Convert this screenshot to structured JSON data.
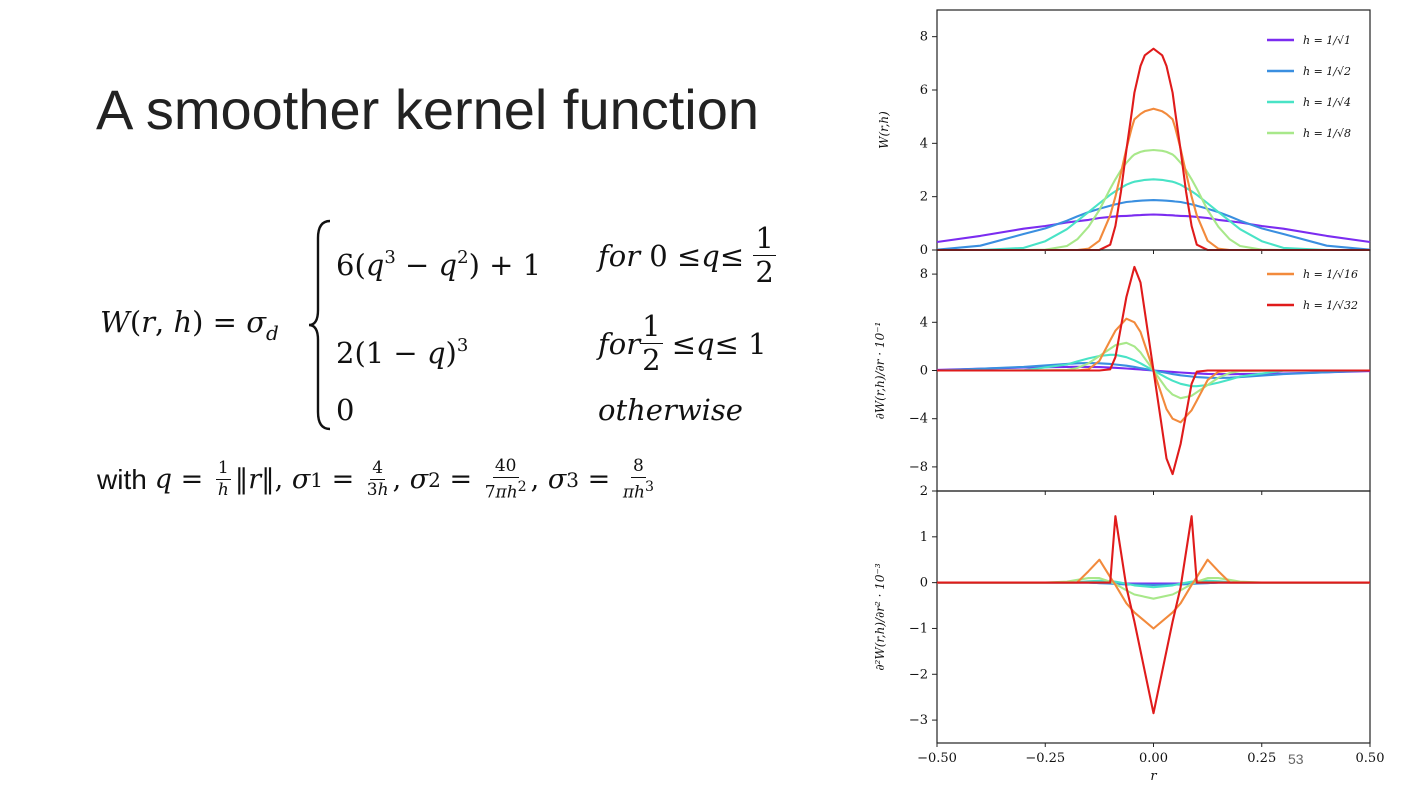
{
  "slide": {
    "title": "A smoother kernel function",
    "page_number": "53"
  },
  "formula": {
    "lhs": "W(r, h) = σ",
    "lhs_sub": "d",
    "cases": [
      {
        "expr": "6(q³ − q²) + 1",
        "condition": "for 0 ≤ q ≤ 1/2"
      },
      {
        "expr": "2(1 − q)³",
        "condition": "for 1/2 ≤ q ≤ 1"
      },
      {
        "expr": "0",
        "condition": "otherwise"
      }
    ],
    "with_word": "with",
    "definitions": {
      "q": "q = (1/h)‖r‖",
      "sigma1": "σ1 = 4/(3h)",
      "sigma2": "σ2 = 40/(7πh²)",
      "sigma3": "σ3 = 8/(πh³)"
    }
  },
  "chart_data": [
    {
      "type": "line",
      "title": "",
      "xlabel": "r",
      "ylabel": "W(r,h)",
      "xlim": [
        -0.5,
        0.5
      ],
      "ylim": [
        0,
        9
      ],
      "yticks": [
        0,
        2,
        4,
        6,
        8
      ],
      "grid": false,
      "legend_position": "top-right",
      "legend_entries": [
        "h = 1/√1",
        "h = 1/√2",
        "h = 1/√4",
        "h = 1/√8"
      ],
      "x": [
        -0.5,
        -0.4,
        -0.3,
        -0.25,
        -0.2,
        -0.176,
        -0.15,
        -0.125,
        -0.1,
        -0.088,
        -0.075,
        -0.0625,
        -0.05,
        -0.044,
        -0.03,
        -0.02,
        0,
        0.02,
        0.03,
        0.044,
        0.05,
        0.0625,
        0.075,
        0.088,
        0.1,
        0.125,
        0.15,
        0.176,
        0.2,
        0.25,
        0.3,
        0.4,
        0.5
      ],
      "series": [
        {
          "name": "h = 1/√1",
          "color": "#7b2cf0",
          "values": [
            0.3,
            0.53,
            0.8,
            0.9,
            1.03,
            1.08,
            1.13,
            1.2,
            1.24,
            1.26,
            1.27,
            1.28,
            1.29,
            1.3,
            1.31,
            1.32,
            1.33,
            1.32,
            1.31,
            1.3,
            1.29,
            1.28,
            1.27,
            1.26,
            1.24,
            1.2,
            1.13,
            1.08,
            1.03,
            0.9,
            0.8,
            0.53,
            0.3
          ]
        },
        {
          "name": "h = 1/√2",
          "color": "#3a8fe0",
          "values": [
            0.01,
            0.16,
            0.6,
            0.81,
            1.1,
            1.26,
            1.42,
            1.55,
            1.66,
            1.71,
            1.76,
            1.8,
            1.82,
            1.83,
            1.85,
            1.86,
            1.87,
            1.86,
            1.85,
            1.83,
            1.82,
            1.8,
            1.76,
            1.71,
            1.66,
            1.55,
            1.42,
            1.26,
            1.1,
            0.81,
            0.6,
            0.16,
            0.01
          ]
        },
        {
          "name": "h = 1/√4",
          "color": "#49e3c6",
          "values": [
            0,
            0,
            0.08,
            0.33,
            0.78,
            1.09,
            1.42,
            1.75,
            2.07,
            2.2,
            2.33,
            2.45,
            2.53,
            2.56,
            2.6,
            2.63,
            2.65,
            2.63,
            2.6,
            2.56,
            2.53,
            2.45,
            2.33,
            2.2,
            2.07,
            1.75,
            1.42,
            1.09,
            0.78,
            0.33,
            0.08,
            0,
            0
          ]
        },
        {
          "name": "h = 1/√8",
          "color": "#a8e88a",
          "values": [
            0,
            0,
            0,
            0.01,
            0.15,
            0.4,
            0.87,
            1.5,
            2.3,
            2.65,
            3.0,
            3.27,
            3.5,
            3.58,
            3.68,
            3.72,
            3.75,
            3.72,
            3.68,
            3.58,
            3.5,
            3.27,
            3.0,
            2.65,
            2.3,
            1.5,
            0.87,
            0.4,
            0.15,
            0.01,
            0,
            0,
            0
          ]
        },
        {
          "name": "h = 1/√16",
          "color": "#f28a3c",
          "values": [
            0,
            0,
            0,
            0,
            0,
            0,
            0.05,
            0.35,
            1.3,
            2.0,
            2.9,
            3.8,
            4.6,
            4.9,
            5.1,
            5.2,
            5.3,
            5.2,
            5.1,
            4.9,
            4.6,
            3.8,
            2.9,
            2.0,
            1.3,
            0.35,
            0.05,
            0,
            0,
            0,
            0,
            0,
            0
          ]
        },
        {
          "name": "h = 1/√32",
          "color": "#e01b1b",
          "values": [
            0,
            0,
            0,
            0,
            0,
            0,
            0,
            0,
            0.2,
            0.9,
            2.2,
            3.75,
            5.2,
            5.9,
            6.9,
            7.3,
            7.55,
            7.3,
            6.9,
            5.9,
            5.2,
            3.75,
            2.2,
            0.9,
            0.2,
            0,
            0,
            0,
            0,
            0,
            0,
            0,
            0
          ]
        }
      ]
    },
    {
      "type": "line",
      "title": "",
      "xlabel": "r",
      "ylabel": "∂W(r,h)/∂r · 10⁻¹",
      "xlim": [
        -0.5,
        0.5
      ],
      "ylim": [
        -10,
        10
      ],
      "yticks": [
        -8,
        -4,
        0,
        4,
        8
      ],
      "grid": false,
      "legend_position": "top-right",
      "legend_entries": [
        "h = 1/√16",
        "h = 1/√32"
      ],
      "x": [
        -0.5,
        -0.3,
        -0.2,
        -0.177,
        -0.15,
        -0.125,
        -0.1,
        -0.088,
        -0.0625,
        -0.044,
        -0.03,
        0,
        0.03,
        0.044,
        0.0625,
        0.088,
        0.1,
        0.125,
        0.15,
        0.177,
        0.2,
        0.3,
        0.5
      ],
      "series": [
        {
          "name": "h = 1/√1",
          "color": "#7b2cf0",
          "values": [
            0.05,
            0.25,
            0.3,
            0.31,
            0.3,
            0.28,
            0.24,
            0.22,
            0.17,
            0.12,
            0.08,
            0,
            -0.08,
            -0.12,
            -0.17,
            -0.22,
            -0.24,
            -0.28,
            -0.3,
            -0.31,
            -0.3,
            -0.25,
            -0.05
          ]
        },
        {
          "name": "h = 1/√2",
          "color": "#3a8fe0",
          "values": [
            0,
            0.3,
            0.55,
            0.6,
            0.62,
            0.6,
            0.55,
            0.5,
            0.4,
            0.3,
            0.2,
            0,
            -0.2,
            -0.3,
            -0.4,
            -0.5,
            -0.55,
            -0.6,
            -0.62,
            -0.6,
            -0.55,
            -0.3,
            0
          ]
        },
        {
          "name": "h = 1/√4",
          "color": "#49e3c6",
          "values": [
            0,
            0.02,
            0.5,
            0.75,
            1.0,
            1.2,
            1.3,
            1.3,
            1.1,
            0.85,
            0.6,
            0,
            -0.6,
            -0.85,
            -1.1,
            -1.3,
            -1.3,
            -1.2,
            -1.0,
            -0.75,
            -0.5,
            -0.02,
            0
          ]
        },
        {
          "name": "h = 1/√8",
          "color": "#a8e88a",
          "values": [
            0,
            0,
            0.05,
            0.2,
            0.6,
            1.2,
            1.8,
            2.1,
            2.3,
            2.0,
            1.5,
            0,
            -1.5,
            -2.0,
            -2.3,
            -2.1,
            -1.8,
            -1.2,
            -0.6,
            -0.2,
            -0.05,
            0,
            0
          ]
        },
        {
          "name": "h = 1/√16",
          "color": "#f28a3c",
          "values": [
            0,
            0,
            0,
            0,
            0.1,
            0.8,
            2.5,
            3.3,
            4.3,
            4.0,
            3.2,
            0,
            -3.2,
            -4.0,
            -4.3,
            -3.3,
            -2.5,
            -0.8,
            -0.1,
            0,
            0,
            0,
            0
          ]
        },
        {
          "name": "h = 1/√32",
          "color": "#e01b1b",
          "values": [
            0,
            0,
            0,
            0,
            0,
            0,
            0.1,
            1.1,
            6.1,
            8.6,
            7.3,
            0,
            -7.3,
            -8.6,
            -6.1,
            -1.1,
            -0.1,
            0,
            0,
            0,
            0,
            0,
            0
          ]
        }
      ]
    },
    {
      "type": "line",
      "title": "",
      "xlabel": "r",
      "ylabel": "∂²W(r,h)/∂r² · 10⁻³",
      "xlim": [
        -0.5,
        0.5
      ],
      "ylim": [
        -3.5,
        2
      ],
      "yticks": [
        -3,
        -2,
        -1,
        0,
        1,
        2
      ],
      "xticks": [
        -0.5,
        -0.25,
        0.0,
        0.25,
        0.5
      ],
      "xticklabels": [
        "−0.50",
        "−0.25",
        "0.00",
        "0.25",
        "0.50"
      ],
      "grid": false,
      "x": [
        -0.5,
        -0.3,
        -0.25,
        -0.2,
        -0.177,
        -0.15,
        -0.125,
        -0.1,
        -0.088,
        -0.0625,
        -0.044,
        0,
        0.044,
        0.0625,
        0.088,
        0.1,
        0.125,
        0.15,
        0.177,
        0.2,
        0.25,
        0.3,
        0.5
      ],
      "series": [
        {
          "name": "h = 1/√1",
          "color": "#7b2cf0",
          "values": [
            0,
            0,
            0,
            0,
            0,
            0,
            -0.01,
            -0.01,
            -0.01,
            -0.02,
            -0.02,
            -0.02,
            -0.02,
            -0.02,
            -0.01,
            -0.01,
            -0.01,
            0,
            0,
            0,
            0,
            0,
            0
          ]
        },
        {
          "name": "h = 1/√2",
          "color": "#3a8fe0",
          "values": [
            0,
            0,
            0,
            0,
            0,
            0,
            -0.01,
            -0.02,
            -0.03,
            -0.04,
            -0.04,
            -0.05,
            -0.04,
            -0.04,
            -0.03,
            -0.02,
            -0.01,
            0,
            0,
            0,
            0,
            0,
            0
          ]
        },
        {
          "name": "h = 1/√4",
          "color": "#49e3c6",
          "values": [
            0,
            0,
            0,
            0,
            0.01,
            0.03,
            0.04,
            0.03,
            0.02,
            -0.02,
            -0.06,
            -0.1,
            -0.06,
            -0.02,
            0.02,
            0.03,
            0.04,
            0.03,
            0.01,
            0,
            0,
            0,
            0
          ]
        },
        {
          "name": "h = 1/√8",
          "color": "#a8e88a",
          "values": [
            0,
            0,
            0,
            0.02,
            0.06,
            0.1,
            0.1,
            0.02,
            -0.03,
            -0.17,
            -0.26,
            -0.35,
            -0.26,
            -0.17,
            -0.03,
            0.02,
            0.1,
            0.1,
            0.06,
            0.02,
            0,
            0,
            0
          ]
        },
        {
          "name": "h = 1/√16",
          "color": "#f28a3c",
          "values": [
            0,
            0,
            0,
            0,
            0,
            0.25,
            0.5,
            0.12,
            -0.05,
            -0.45,
            -0.65,
            -1.0,
            -0.65,
            -0.45,
            -0.05,
            0.12,
            0.5,
            0.25,
            0,
            0,
            0,
            0,
            0
          ]
        },
        {
          "name": "h = 1/√32",
          "color": "#e01b1b",
          "values": [
            0,
            0,
            0,
            0,
            0,
            0,
            0,
            0,
            1.45,
            -0.1,
            -0.85,
            -2.85,
            -0.85,
            -0.1,
            1.45,
            0,
            0,
            0,
            0,
            0,
            0,
            0,
            0
          ]
        }
      ]
    }
  ]
}
